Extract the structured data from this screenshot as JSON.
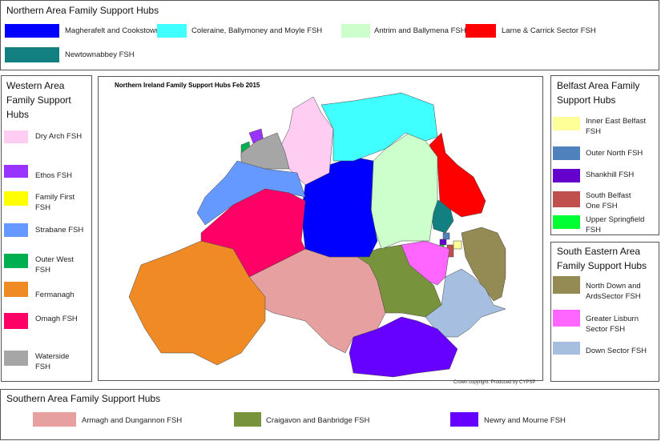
{
  "northern": {
    "title": "Northern Area Family Support Hubs",
    "items": [
      {
        "label": "Magherafelt and Cookstown",
        "color": "#0000ff"
      },
      {
        "label": "Coleraine, Ballymoney and Moyle FSH",
        "color": "#40ffff"
      },
      {
        "label": "Antrim and Ballymena FSH",
        "color": "#ccffcc"
      },
      {
        "label": "Larne & Carrick Sector FSH",
        "color": "#ff0000"
      },
      {
        "label": "Newtownabbey FSH",
        "color": "#128080"
      }
    ]
  },
  "western": {
    "title": "Western Area Family Support Hubs",
    "items": [
      {
        "label": "Dry Arch FSH",
        "color": "#ffccf2"
      },
      {
        "label": "Ethos FSH",
        "color": "#9933ff"
      },
      {
        "label": "Family First FSH",
        "color": "#ffff00"
      },
      {
        "label": "Strabane FSH",
        "color": "#6699ff"
      },
      {
        "label": "Outer West FSH",
        "color": "#00b050"
      },
      {
        "label": "Fermanagh",
        "color": "#f08a24"
      },
      {
        "label": "Omagh FSH",
        "color": "#ff0066"
      },
      {
        "label": "Waterside FSH",
        "color": "#a6a6a6"
      }
    ]
  },
  "belfast": {
    "title": "Belfast Area Family Support Hubs",
    "items": [
      {
        "label": "Inner East Belfast FSH",
        "color": "#ffff99"
      },
      {
        "label": "Outer North FSH",
        "color": "#4f81bd"
      },
      {
        "label": "Shankhill FSH",
        "color": "#6600cc"
      },
      {
        "label": "South Belfast One FSH",
        "color": "#c0504d"
      },
      {
        "label": "Upper Springfield FSH",
        "color": "#00ff33"
      }
    ]
  },
  "south_eastern": {
    "title": "South Eastern Area Family Support Hubs",
    "items": [
      {
        "label": "North Down and ArdsSector FSH",
        "color": "#948a54"
      },
      {
        "label": "Greater Lisburn Sector FSH",
        "color": "#ff66ff"
      },
      {
        "label": "Down Sector FSH",
        "color": "#a6bfe0"
      }
    ]
  },
  "southern": {
    "title": "Southern Area Family Support Hubs",
    "items": [
      {
        "label": "Armagh and Dungannon FSH",
        "color": "#e6a0a0"
      },
      {
        "label": "Craigavon and Banbridge FSH",
        "color": "#77933c"
      },
      {
        "label": "Newry and Mourne FSH",
        "color": "#6600ff"
      }
    ]
  },
  "map": {
    "title": "Northern Ireland Family Support Hubs Feb 2015",
    "credit": "Crown copyright: Produced by CYPSP"
  }
}
